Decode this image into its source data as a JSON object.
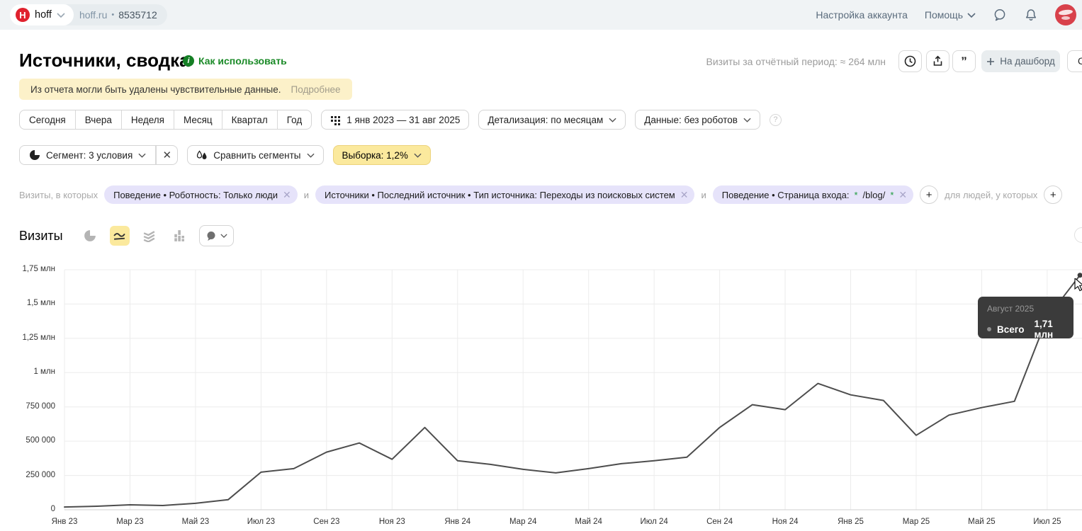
{
  "topbar": {
    "counter_name": "hoff",
    "counter_domain": "hoff.ru",
    "counter_separator": "•",
    "counter_id": "8535712",
    "account_settings": "Настройка аккаунта",
    "help": "Помощь"
  },
  "header": {
    "title": "Источники, сводка",
    "how_to_use": "Как использовать",
    "visits_period": "Визиты за отчётный период: ≈ 264 млн",
    "dashboard_button": "На дашборд",
    "create_button_partial": "С",
    "api_icon_glyph": "”"
  },
  "notice": {
    "text": "Из отчета могли быть удалены чувствительные данные.",
    "link": "Подробнее"
  },
  "period_buttons": [
    "Сегодня",
    "Вчера",
    "Неделя",
    "Месяц",
    "Квартал",
    "Год"
  ],
  "date_range": "1 янв 2023 — 31 авг 2025",
  "detalization": "Детализация: по месяцам",
  "data_mode": "Данные: без роботов",
  "segment": {
    "label": "Сегмент: 3 условия",
    "compare": "Сравнить сегменты",
    "sampling": "Выборка: 1,2%"
  },
  "filters": {
    "prefix": "Визиты, в которых",
    "and": "и",
    "chips": [
      {
        "text": "Поведение • Роботность: Только люди"
      },
      {
        "text": "Источники • Последний источник • Тип источника: Переходы из поисковых систем"
      },
      {
        "prefix": "Поведение • Страница входа: ",
        "star1": "*",
        "path": "/blog/",
        "star2": "*"
      }
    ],
    "suffix": "для людей, у которых"
  },
  "metric": {
    "title": "Визиты"
  },
  "tooltip": {
    "period": "Август 2025",
    "label": "Всего",
    "value": "1,71 млн"
  },
  "colors": {
    "accent_yellow": "#fbe99d",
    "chip_lavender": "#e6e3fa",
    "brand_red": "#e0222e",
    "link_green": "#1a8a27",
    "banner_yellow": "#fcf1c9",
    "tooltip_dark": "#3b3b3b",
    "line_gray": "#4d4d4d"
  },
  "chart_data": {
    "type": "line",
    "title": "Визиты",
    "series_name": "Всего",
    "x": [
      "Янв 23",
      "Фев 23",
      "Мар 23",
      "Апр 23",
      "Май 23",
      "Июн 23",
      "Июл 23",
      "Авг 23",
      "Сен 23",
      "Окт 23",
      "Ноя 23",
      "Дек 23",
      "Янв 24",
      "Фев 24",
      "Мар 24",
      "Апр 24",
      "Май 24",
      "Июн 24",
      "Июл 24",
      "Авг 24",
      "Сен 24",
      "Окт 24",
      "Ноя 24",
      "Дек 24",
      "Янв 25",
      "Фев 25",
      "Мар 25",
      "Апр 25",
      "Май 25",
      "Июн 25",
      "Июл 25",
      "Авг 25"
    ],
    "values": [
      20000,
      26000,
      36000,
      31000,
      47000,
      74000,
      274000,
      300000,
      420000,
      487000,
      368000,
      600000,
      357000,
      331000,
      295000,
      269000,
      300000,
      336000,
      357000,
      383000,
      600000,
      766000,
      730000,
      921000,
      838000,
      797000,
      543000,
      690000,
      745000,
      791000,
      1400000,
      1710000
    ],
    "x_tick_labels": [
      "Янв 23",
      "Мар 23",
      "Май 23",
      "Июл 23",
      "Сен 23",
      "Ноя 23",
      "Янв 24",
      "Мар 24",
      "Май 24",
      "Июл 24",
      "Сен 24",
      "Ноя 24",
      "Янв 25",
      "Мар 25",
      "Май 25",
      "Июл 25"
    ],
    "y_tick_labels": [
      "0",
      "250 000",
      "500 000",
      "750 000",
      "1 млн",
      "1,25 млн",
      "1,5 млн",
      "1,75 млн"
    ],
    "ylim": [
      0,
      1750000
    ],
    "y_step": 250000,
    "grid": true,
    "line_color": "#4d4d4d",
    "highlighted_point": {
      "x": "Авг 25",
      "value_label": "1,71 млн"
    }
  }
}
